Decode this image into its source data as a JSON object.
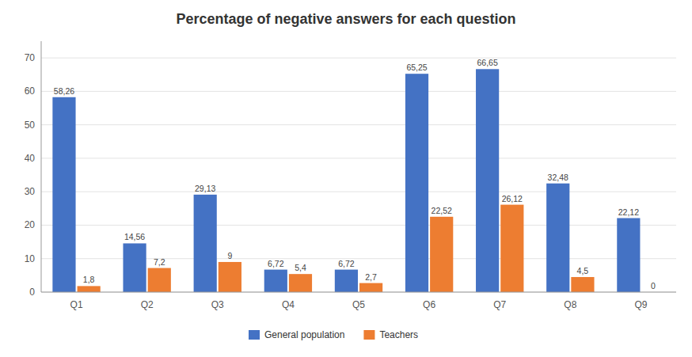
{
  "chart_data": {
    "type": "bar",
    "title": "Percentage of negative answers for each question",
    "categories": [
      "Q1",
      "Q2",
      "Q3",
      "Q4",
      "Q5",
      "Q6",
      "Q7",
      "Q8",
      "Q9"
    ],
    "series": [
      {
        "name": "General population",
        "color": "#4472C4",
        "values": [
          58.26,
          14.56,
          29.13,
          6.72,
          6.72,
          65.25,
          66.65,
          32.48,
          22.12
        ],
        "value_labels": [
          "58,26",
          "14,56",
          "29,13",
          "6,72",
          "6,72",
          "65,25",
          "66,65",
          "32,48",
          "22,12"
        ]
      },
      {
        "name": "Teachers",
        "color": "#ED7D31",
        "values": [
          1.8,
          7.2,
          9,
          5.4,
          2.7,
          22.52,
          26.12,
          4.5,
          0
        ],
        "value_labels": [
          "1,8",
          "7,2",
          "9",
          "5,4",
          "2,7",
          "22,52",
          "26,12",
          "4,5",
          "0"
        ]
      }
    ],
    "ylim": [
      0,
      75
    ],
    "yticks": [
      0,
      10,
      20,
      30,
      40,
      50,
      60,
      70
    ],
    "grid": true,
    "data_labels": true,
    "legend": "bottom"
  }
}
